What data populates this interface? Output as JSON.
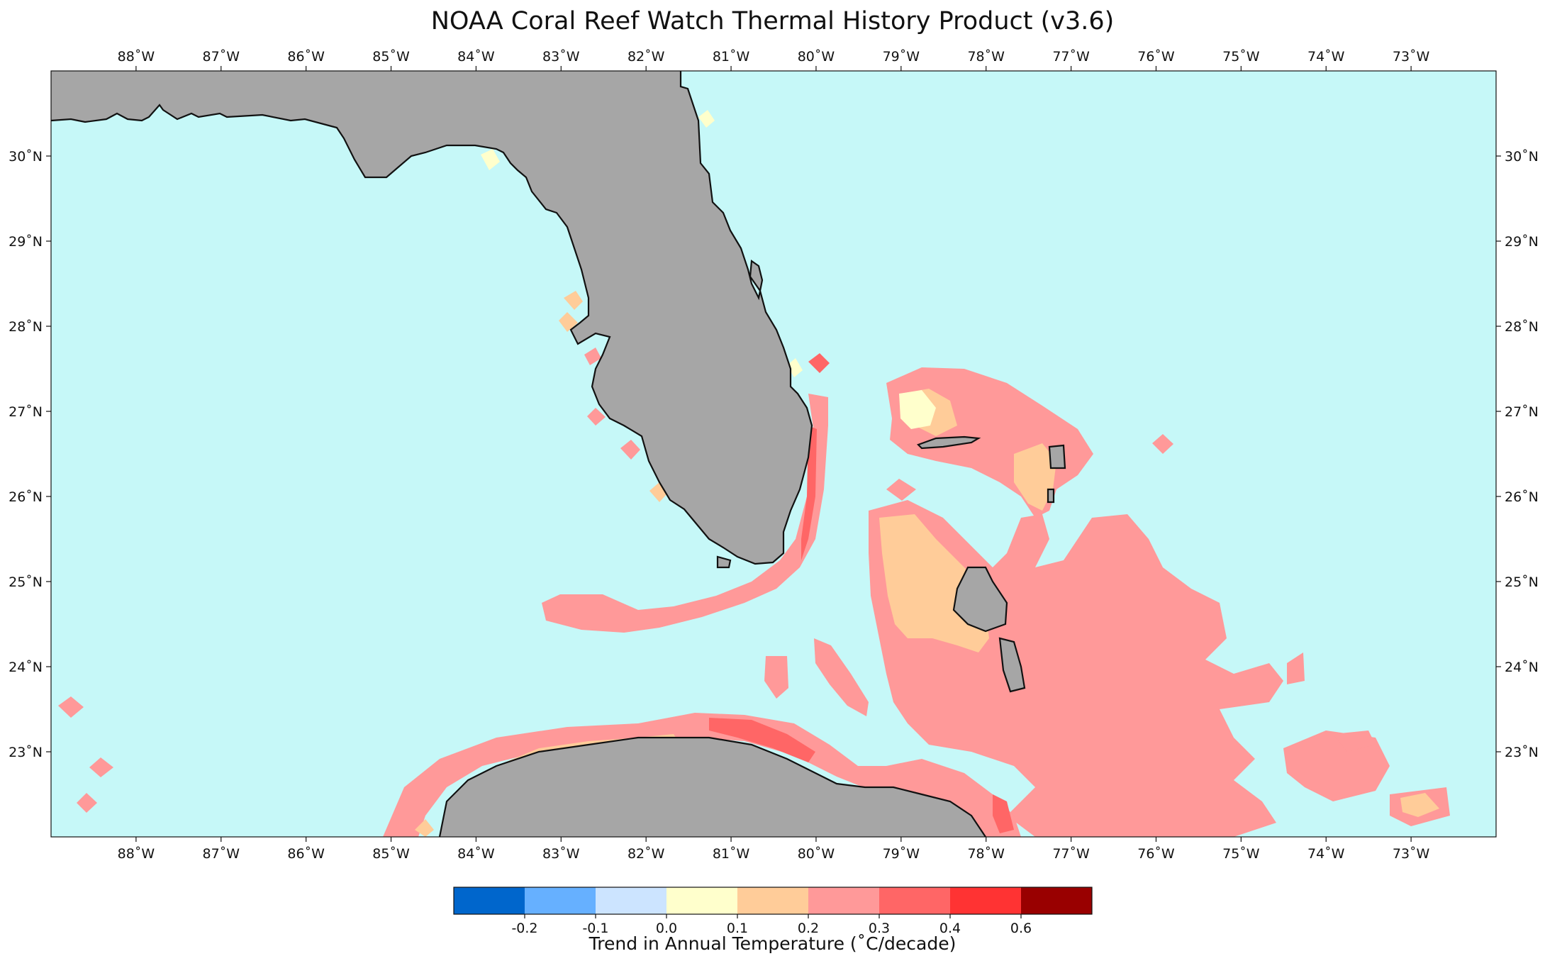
{
  "title": "NOAA Coral Reef Watch Thermal History Product (v3.6)",
  "map": {
    "lon_range": [
      -89,
      -72
    ],
    "lat_range": [
      22,
      31
    ],
    "lon_ticks": [
      "88˚W",
      "87˚W",
      "86˚W",
      "85˚W",
      "84˚W",
      "83˚W",
      "82˚W",
      "81˚W",
      "80˚W",
      "79˚W",
      "78˚W",
      "77˚W",
      "76˚W",
      "75˚W",
      "74˚W",
      "73˚W"
    ],
    "lat_ticks": [
      "30˚N",
      "29˚N",
      "28˚N",
      "27˚N",
      "26˚N",
      "25˚N",
      "24˚N",
      "23˚N"
    ],
    "ocean_color": "#c6f8f8",
    "land_color": "#a6a6a6",
    "coast_color": "#111111"
  },
  "legend": {
    "title": "Trend in Annual Temperature (˚C/decade)",
    "colors": [
      "#0066cc",
      "#66b0ff",
      "#cce4ff",
      "#ffffcc",
      "#ffcc99",
      "#ff9999",
      "#ff6666",
      "#ff3333",
      "#990000"
    ],
    "tick_labels": [
      "-0.2",
      "-0.1",
      "0.0",
      "0.1",
      "0.2",
      "0.3",
      "0.4",
      "0.6"
    ]
  }
}
